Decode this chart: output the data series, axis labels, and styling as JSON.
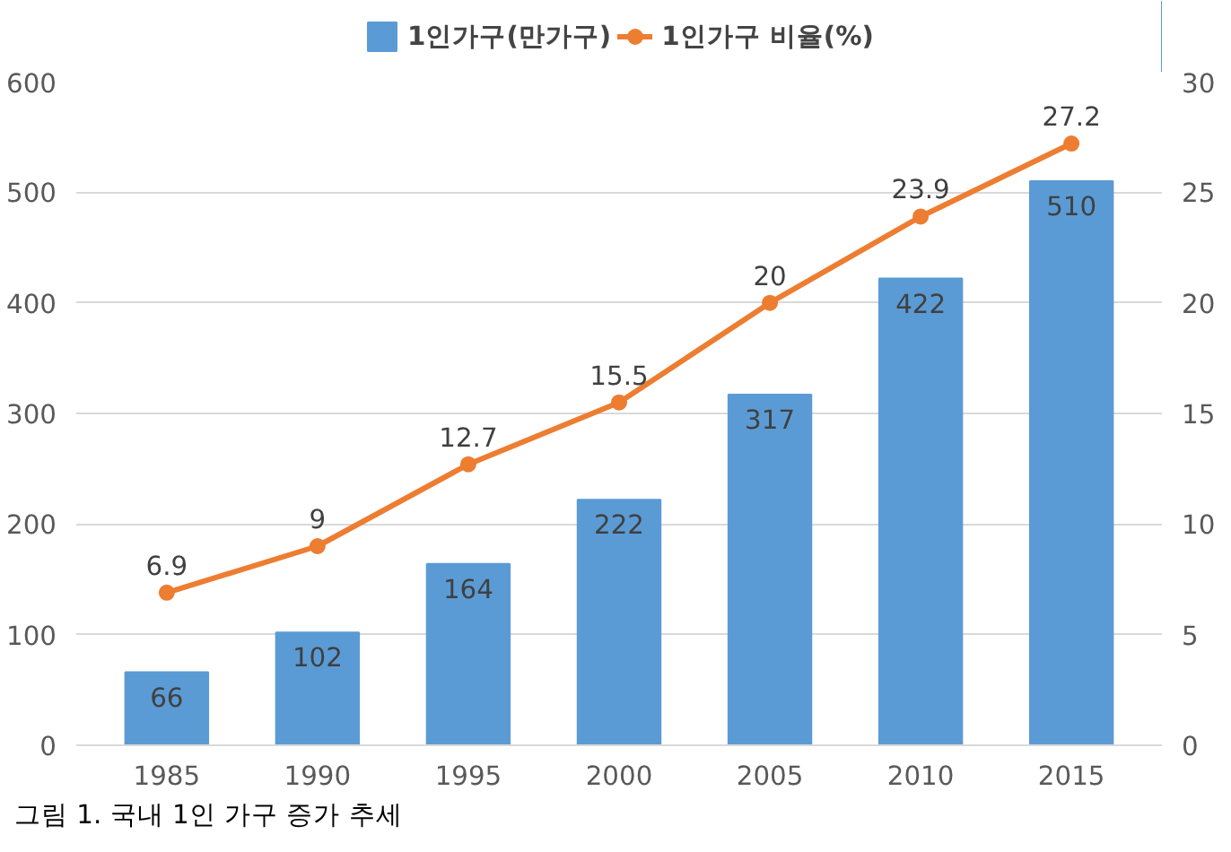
{
  "chart_data": {
    "type": "bar",
    "categories": [
      "1985",
      "1990",
      "1995",
      "2000",
      "2005",
      "2010",
      "2015"
    ],
    "series": [
      {
        "name": "1인가구(만가구)",
        "color": "#5b9bd5",
        "values": [
          66,
          102,
          164,
          222,
          317,
          422,
          510
        ]
      },
      {
        "name": "1인가구 비율(%)",
        "type": "line",
        "axis": "y2",
        "color": "#ed7d31",
        "values": [
          6.9,
          9,
          12.7,
          15.5,
          20,
          23.9,
          27.2
        ]
      }
    ],
    "ylim": [
      0,
      600
    ],
    "yticks": [
      0,
      100,
      200,
      300,
      400,
      500,
      600
    ],
    "y2lim": [
      0,
      30
    ],
    "y2ticks": [
      0,
      5,
      10,
      15,
      20,
      25,
      30
    ],
    "data_labels": true,
    "legend": "top",
    "grid": "y",
    "marker": "circle",
    "line_style": "solid",
    "annotations": [
      "그림 1. 국내 1인 가구 증가 추세"
    ]
  }
}
